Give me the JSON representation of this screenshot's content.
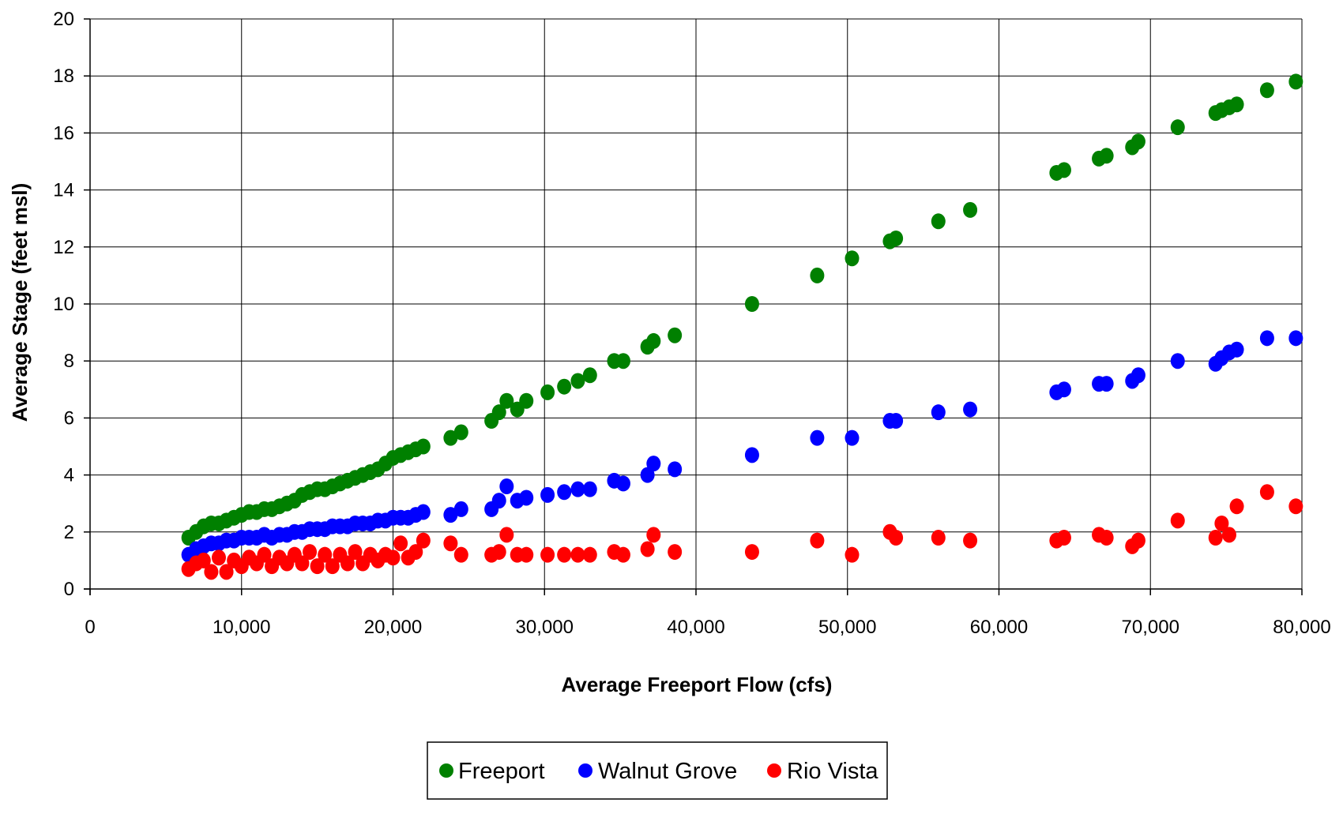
{
  "chart_data": {
    "type": "scatter",
    "title": "",
    "xlabel": "Average Freeport Flow (cfs)",
    "ylabel": "Average Stage (feet msl)",
    "xlim": [
      0,
      80000
    ],
    "ylim": [
      0,
      20
    ],
    "x_ticks": [
      0,
      10000,
      20000,
      30000,
      40000,
      50000,
      60000,
      70000,
      80000
    ],
    "x_tick_labels": [
      "0",
      "10,000",
      "20,000",
      "30,000",
      "40,000",
      "50,000",
      "60,000",
      "70,000",
      "80,000"
    ],
    "y_ticks": [
      0,
      2,
      4,
      6,
      8,
      10,
      12,
      14,
      16,
      18,
      20
    ],
    "y_tick_labels": [
      "0",
      "2",
      "4",
      "6",
      "8",
      "10",
      "12",
      "14",
      "16",
      "18",
      "20"
    ],
    "grid": true,
    "legend_position": "bottom",
    "series": [
      {
        "name": "Freeport",
        "color": "#008000",
        "points": [
          [
            6500,
            1.8
          ],
          [
            7000,
            2.0
          ],
          [
            7500,
            2.2
          ],
          [
            8000,
            2.3
          ],
          [
            8500,
            2.3
          ],
          [
            9000,
            2.4
          ],
          [
            9500,
            2.5
          ],
          [
            10000,
            2.6
          ],
          [
            10500,
            2.7
          ],
          [
            11000,
            2.7
          ],
          [
            11500,
            2.8
          ],
          [
            12000,
            2.8
          ],
          [
            12500,
            2.9
          ],
          [
            13000,
            3.0
          ],
          [
            13500,
            3.1
          ],
          [
            14000,
            3.3
          ],
          [
            14500,
            3.4
          ],
          [
            15000,
            3.5
          ],
          [
            15500,
            3.5
          ],
          [
            16000,
            3.6
          ],
          [
            16500,
            3.7
          ],
          [
            17000,
            3.8
          ],
          [
            17500,
            3.9
          ],
          [
            18000,
            4.0
          ],
          [
            18500,
            4.1
          ],
          [
            19000,
            4.2
          ],
          [
            19500,
            4.4
          ],
          [
            20000,
            4.6
          ],
          [
            20500,
            4.7
          ],
          [
            21000,
            4.8
          ],
          [
            21500,
            4.9
          ],
          [
            22000,
            5.0
          ],
          [
            23800,
            5.3
          ],
          [
            24500,
            5.5
          ],
          [
            26500,
            5.9
          ],
          [
            27000,
            6.2
          ],
          [
            27500,
            6.6
          ],
          [
            28200,
            6.3
          ],
          [
            28800,
            6.6
          ],
          [
            30200,
            6.9
          ],
          [
            31300,
            7.1
          ],
          [
            32200,
            7.3
          ],
          [
            33000,
            7.5
          ],
          [
            34600,
            8.0
          ],
          [
            35200,
            8.0
          ],
          [
            36800,
            8.5
          ],
          [
            37200,
            8.7
          ],
          [
            38600,
            8.9
          ],
          [
            43700,
            10.0
          ],
          [
            48000,
            11.0
          ],
          [
            50300,
            11.6
          ],
          [
            52800,
            12.2
          ],
          [
            53200,
            12.3
          ],
          [
            56000,
            12.9
          ],
          [
            58100,
            13.3
          ],
          [
            63800,
            14.6
          ],
          [
            64300,
            14.7
          ],
          [
            66600,
            15.1
          ],
          [
            67100,
            15.2
          ],
          [
            68800,
            15.5
          ],
          [
            69200,
            15.7
          ],
          [
            71800,
            16.2
          ],
          [
            74300,
            16.7
          ],
          [
            74700,
            16.8
          ],
          [
            75200,
            16.9
          ],
          [
            75700,
            17.0
          ],
          [
            77700,
            17.5
          ],
          [
            79600,
            17.8
          ]
        ]
      },
      {
        "name": "Walnut Grove",
        "color": "#0000ff",
        "points": [
          [
            6500,
            1.2
          ],
          [
            7000,
            1.4
          ],
          [
            7500,
            1.5
          ],
          [
            8000,
            1.6
          ],
          [
            8500,
            1.6
          ],
          [
            9000,
            1.7
          ],
          [
            9500,
            1.7
          ],
          [
            10000,
            1.8
          ],
          [
            10500,
            1.8
          ],
          [
            11000,
            1.8
          ],
          [
            11500,
            1.9
          ],
          [
            12000,
            1.8
          ],
          [
            12500,
            1.9
          ],
          [
            13000,
            1.9
          ],
          [
            13500,
            2.0
          ],
          [
            14000,
            2.0
          ],
          [
            14500,
            2.1
          ],
          [
            15000,
            2.1
          ],
          [
            15500,
            2.1
          ],
          [
            16000,
            2.2
          ],
          [
            16500,
            2.2
          ],
          [
            17000,
            2.2
          ],
          [
            17500,
            2.3
          ],
          [
            18000,
            2.3
          ],
          [
            18500,
            2.3
          ],
          [
            19000,
            2.4
          ],
          [
            19500,
            2.4
          ],
          [
            20000,
            2.5
          ],
          [
            20500,
            2.5
          ],
          [
            21000,
            2.5
          ],
          [
            21500,
            2.6
          ],
          [
            22000,
            2.7
          ],
          [
            23800,
            2.6
          ],
          [
            24500,
            2.8
          ],
          [
            26500,
            2.8
          ],
          [
            27000,
            3.1
          ],
          [
            27500,
            3.6
          ],
          [
            28200,
            3.1
          ],
          [
            28800,
            3.2
          ],
          [
            30200,
            3.3
          ],
          [
            31300,
            3.4
          ],
          [
            32200,
            3.5
          ],
          [
            33000,
            3.5
          ],
          [
            34600,
            3.8
          ],
          [
            35200,
            3.7
          ],
          [
            36800,
            4.0
          ],
          [
            37200,
            4.4
          ],
          [
            38600,
            4.2
          ],
          [
            43700,
            4.7
          ],
          [
            48000,
            5.3
          ],
          [
            50300,
            5.3
          ],
          [
            52800,
            5.9
          ],
          [
            53200,
            5.9
          ],
          [
            56000,
            6.2
          ],
          [
            58100,
            6.3
          ],
          [
            63800,
            6.9
          ],
          [
            64300,
            7.0
          ],
          [
            66600,
            7.2
          ],
          [
            67100,
            7.2
          ],
          [
            68800,
            7.3
          ],
          [
            69200,
            7.5
          ],
          [
            71800,
            8.0
          ],
          [
            74300,
            7.9
          ],
          [
            74700,
            8.1
          ],
          [
            75200,
            8.3
          ],
          [
            75700,
            8.4
          ],
          [
            77700,
            8.8
          ],
          [
            79600,
            8.8
          ]
        ]
      },
      {
        "name": "Rio Vista",
        "color": "#ff0000",
        "points": [
          [
            6500,
            0.7
          ],
          [
            7000,
            0.9
          ],
          [
            7500,
            1.0
          ],
          [
            8000,
            0.6
          ],
          [
            8500,
            1.1
          ],
          [
            9000,
            0.6
          ],
          [
            9500,
            1.0
          ],
          [
            10000,
            0.8
          ],
          [
            10500,
            1.1
          ],
          [
            11000,
            0.9
          ],
          [
            11500,
            1.2
          ],
          [
            12000,
            0.8
          ],
          [
            12500,
            1.1
          ],
          [
            13000,
            0.9
          ],
          [
            13500,
            1.2
          ],
          [
            14000,
            0.9
          ],
          [
            14500,
            1.3
          ],
          [
            15000,
            0.8
          ],
          [
            15500,
            1.2
          ],
          [
            16000,
            0.8
          ],
          [
            16500,
            1.2
          ],
          [
            17000,
            0.9
          ],
          [
            17500,
            1.3
          ],
          [
            18000,
            0.9
          ],
          [
            18500,
            1.2
          ],
          [
            19000,
            1.0
          ],
          [
            19500,
            1.2
          ],
          [
            20000,
            1.1
          ],
          [
            20500,
            1.6
          ],
          [
            21000,
            1.1
          ],
          [
            21500,
            1.3
          ],
          [
            22000,
            1.7
          ],
          [
            23800,
            1.6
          ],
          [
            24500,
            1.2
          ],
          [
            26500,
            1.2
          ],
          [
            27000,
            1.3
          ],
          [
            27500,
            1.9
          ],
          [
            28200,
            1.2
          ],
          [
            28800,
            1.2
          ],
          [
            30200,
            1.2
          ],
          [
            31300,
            1.2
          ],
          [
            32200,
            1.2
          ],
          [
            33000,
            1.2
          ],
          [
            34600,
            1.3
          ],
          [
            35200,
            1.2
          ],
          [
            36800,
            1.4
          ],
          [
            37200,
            1.9
          ],
          [
            38600,
            1.3
          ],
          [
            43700,
            1.3
          ],
          [
            48000,
            1.7
          ],
          [
            50300,
            1.2
          ],
          [
            52800,
            2.0
          ],
          [
            53200,
            1.8
          ],
          [
            56000,
            1.8
          ],
          [
            58100,
            1.7
          ],
          [
            63800,
            1.7
          ],
          [
            64300,
            1.8
          ],
          [
            66600,
            1.9
          ],
          [
            67100,
            1.8
          ],
          [
            68800,
            1.5
          ],
          [
            69200,
            1.7
          ],
          [
            71800,
            2.4
          ],
          [
            74300,
            1.8
          ],
          [
            74700,
            2.3
          ],
          [
            75200,
            1.9
          ],
          [
            75700,
            2.9
          ],
          [
            77700,
            3.4
          ],
          [
            79600,
            2.9
          ]
        ]
      }
    ]
  }
}
